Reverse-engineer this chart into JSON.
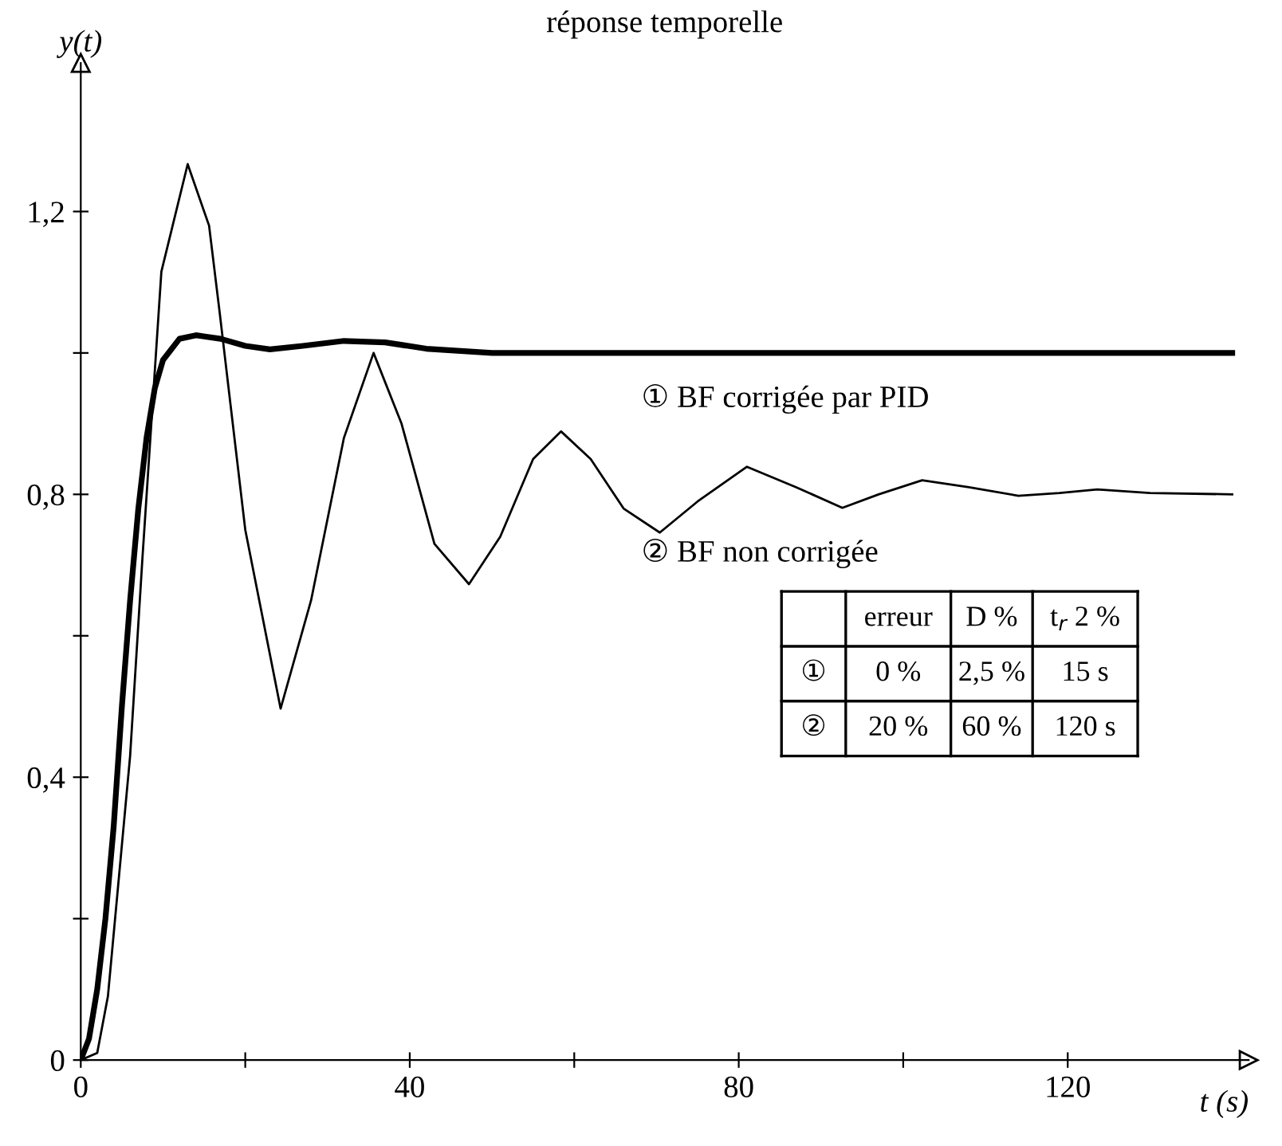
{
  "chart_data": {
    "type": "line",
    "title": "réponse temporelle",
    "xlabel": "t (s)",
    "ylabel": "y(t)",
    "xlim": [
      0,
      142
    ],
    "ylim": [
      0,
      1.41
    ],
    "xticks": [
      0,
      {
        "value": 20,
        "label": null
      },
      40,
      {
        "value": 60,
        "label": null
      },
      80,
      {
        "value": 100,
        "label": null
      },
      120
    ],
    "yticks": [
      0,
      {
        "value": 0.2,
        "label": null
      },
      {
        "value": 0.4,
        "label": "0,4"
      },
      {
        "value": 0.6,
        "label": null
      },
      {
        "value": 0.8,
        "label": "0,8"
      },
      {
        "value": 1.0,
        "label": null
      },
      {
        "value": 1.2,
        "label": "1,2"
      }
    ],
    "grid": false,
    "legend": false,
    "marker": "none",
    "line_style": "solid",
    "series": [
      {
        "name": "① BF corrigée par PID",
        "color": "#000000",
        "x": [
          0,
          1,
          2,
          3,
          4,
          5,
          6,
          7,
          8,
          9,
          10,
          12,
          14,
          17,
          20,
          23,
          27,
          32,
          37,
          42,
          50,
          140
        ],
        "values": [
          0,
          0.03,
          0.1,
          0.2,
          0.33,
          0.5,
          0.65,
          0.78,
          0.88,
          0.95,
          0.99,
          1.02,
          1.025,
          1.02,
          1.01,
          1.005,
          1.01,
          1.017,
          1.015,
          1.006,
          1.0,
          1.0
        ]
      },
      {
        "name": "② BF non corrigée",
        "color": "#000000",
        "x": [
          0,
          2,
          3.3,
          6,
          7.5,
          9.8,
          13,
          15.6,
          16.9,
          20,
          24.3,
          28,
          32,
          35.6,
          39,
          43,
          47.2,
          51,
          55,
          58.4,
          62,
          66,
          70.4,
          75,
          81,
          87,
          92.6,
          97,
          102.3,
          108,
          114,
          119,
          123.6,
          130,
          140
        ],
        "values": [
          0,
          0.01,
          0.09,
          0.43,
          0.71,
          1.115,
          1.267,
          1.18,
          1.056,
          0.75,
          0.497,
          0.65,
          0.88,
          1.0,
          0.9,
          0.73,
          0.673,
          0.74,
          0.85,
          0.889,
          0.85,
          0.78,
          0.746,
          0.79,
          0.839,
          0.81,
          0.781,
          0.8,
          0.82,
          0.81,
          0.798,
          0.802,
          0.807,
          0.802,
          0.8
        ]
      }
    ],
    "annotations": [
      "erreur",
      "D %",
      "t$_{r}$ 2 %",
      "①",
      "0 %",
      "2,5 %",
      "15 s",
      "②",
      "20 %",
      "60 %",
      "120 s"
    ]
  }
}
